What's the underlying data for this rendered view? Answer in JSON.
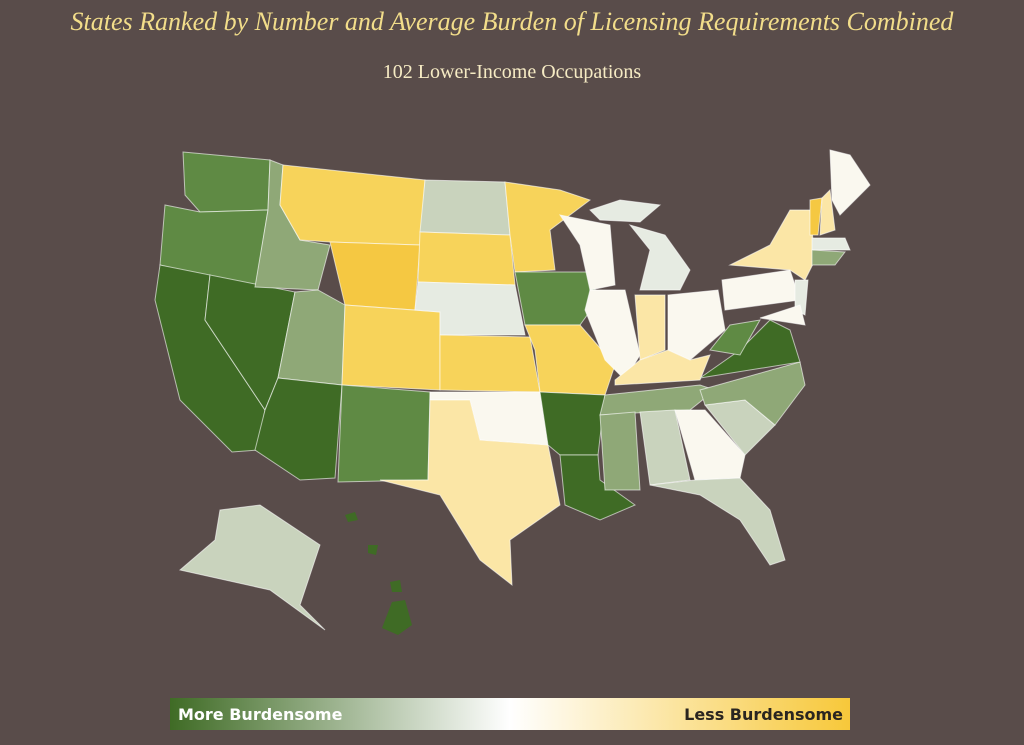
{
  "header": {
    "title": "States Ranked by Number and Average Burden of Licensing Requirements Combined",
    "subtitle": "102 Lower-Income Occupations"
  },
  "legend": {
    "left_label": "More Burdensome",
    "right_label": "Less Burdensome"
  }
}
